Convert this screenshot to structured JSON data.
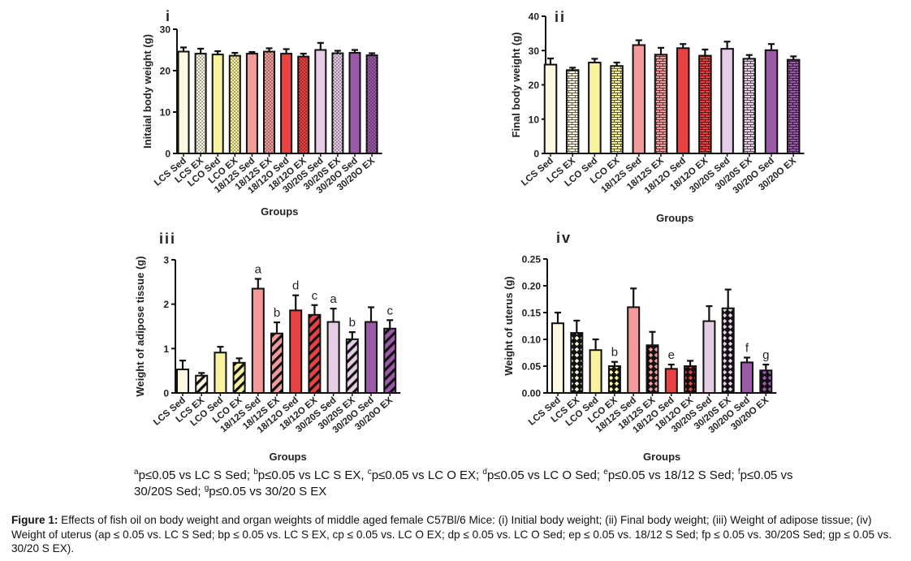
{
  "groups": [
    "LCS Sed",
    "LCS  EX",
    "LCO Sed",
    "LCO  EX",
    "18/12S Sed",
    "18/12S EX",
    "18/12O Sed",
    "18/12O EX",
    "30/20S Sed",
    "30/20S EX",
    "30/20O Sed",
    "30/20O EX"
  ],
  "group_colors": [
    "#fdf9e0",
    "#fdf9e0",
    "#f7f39e",
    "#f7f39e",
    "#f39b9b",
    "#f39b9b",
    "#ea4242",
    "#ea4242",
    "#e6cde6",
    "#e6cde6",
    "#9b5aa8",
    "#9b5aa8"
  ],
  "chart_data": [
    {
      "type": "bar",
      "panel": "i",
      "title": "",
      "xlabel": "Groups",
      "ylabel": "Initaial body weight (g)",
      "ylim": [
        0,
        30
      ],
      "yticks": [
        0,
        10,
        20,
        30
      ],
      "ytick_labels": [
        "0",
        "10",
        "20",
        "30"
      ],
      "pattern": "dots",
      "categories": [
        "LCS Sed",
        "LCS  EX",
        "LCO Sed",
        "LCO  EX",
        "18/12S Sed",
        "18/12S EX",
        "18/12O Sed",
        "18/12O EX",
        "30/20S Sed",
        "30/20S EX",
        "30/20O Sed",
        "30/20O EX"
      ],
      "values": [
        24.6,
        24.1,
        23.9,
        23.6,
        24.1,
        24.6,
        24.1,
        23.4,
        25.0,
        24.2,
        24.3,
        23.7
      ],
      "errors": [
        1.0,
        1.2,
        0.8,
        0.7,
        0.4,
        0.8,
        1.1,
        0.7,
        1.7,
        0.6,
        0.7,
        0.5
      ],
      "annotations": [
        "",
        "",
        "",
        "",
        "",
        "",
        "",
        "",
        "",
        "",
        "",
        ""
      ]
    },
    {
      "type": "bar",
      "panel": "ii",
      "title": "",
      "xlabel": "Groups",
      "ylabel": "Final body weight (g)",
      "ylim": [
        0,
        40
      ],
      "yticks": [
        0,
        10,
        20,
        30,
        40
      ],
      "ytick_labels": [
        "0",
        "10",
        "20",
        "30",
        "40"
      ],
      "pattern": "bricks",
      "categories": [
        "LCS Sed",
        "LCS  EX",
        "LCO Sed",
        "LCO  EX",
        "18/12S Sed",
        "18/12S EX",
        "18/12O Sed",
        "18/12O EX",
        "30/20S Sed",
        "30/20S EX",
        "30/20O Sed",
        "30/20O EX"
      ],
      "values": [
        25.9,
        24.3,
        26.5,
        25.5,
        31.6,
        28.8,
        30.7,
        28.5,
        30.5,
        27.6,
        30.1,
        27.3
      ],
      "errors": [
        1.8,
        0.7,
        1.1,
        1.0,
        1.4,
        2.0,
        1.2,
        1.8,
        2.1,
        1.1,
        1.8,
        1.0
      ],
      "annotations": [
        "",
        "",
        "",
        "",
        "",
        "",
        "",
        "",
        "",
        "",
        "",
        ""
      ]
    },
    {
      "type": "bar",
      "panel": "iii",
      "title": "",
      "xlabel": "Groups",
      "ylabel": "Weight of adipose tissue (g)",
      "ylim": [
        0,
        3
      ],
      "yticks": [
        0,
        1,
        2,
        3
      ],
      "ytick_labels": [
        "0",
        "1",
        "2",
        "3"
      ],
      "pattern": "stripes",
      "categories": [
        "LCS Sed",
        "LCS  EX",
        "LCO Sed",
        "LCO  EX",
        "18/12S Sed",
        "18/12S EX",
        "18/12O Sed",
        "18/12O EX",
        "30/20S Sed",
        "30/20S EX",
        "30/20O Sed",
        "30/20O EX"
      ],
      "values": [
        0.53,
        0.39,
        0.91,
        0.68,
        2.35,
        1.34,
        1.86,
        1.76,
        1.6,
        1.21,
        1.6,
        1.45
      ],
      "errors": [
        0.2,
        0.06,
        0.13,
        0.1,
        0.22,
        0.25,
        0.34,
        0.22,
        0.3,
        0.16,
        0.33,
        0.19
      ],
      "annotations": [
        "",
        "",
        "",
        "",
        "a",
        "b",
        "d",
        "c",
        "a",
        "b",
        "",
        "c"
      ]
    },
    {
      "type": "bar",
      "panel": "iv",
      "title": "",
      "xlabel": "Groups",
      "ylabel": "Weight of uterus (g)",
      "ylim": [
        0,
        0.25
      ],
      "yticks": [
        0,
        0.05,
        0.1,
        0.15,
        0.2,
        0.25
      ],
      "ytick_labels": [
        "0.00",
        "0.05",
        "0.10",
        "0.15",
        "0.20",
        "0.25"
      ],
      "pattern": "diamonds",
      "categories": [
        "LCS Sed",
        "LCS  EX",
        "LCO Sed",
        "LCO  EX",
        "18/12S Sed",
        "18/12S EX",
        "18/12O Sed",
        "18/12O EX",
        "30/20S Sed",
        "30/20S EX",
        "30/20O Sed",
        "30/20O EX"
      ],
      "values": [
        0.13,
        0.112,
        0.08,
        0.05,
        0.16,
        0.089,
        0.045,
        0.05,
        0.134,
        0.158,
        0.057,
        0.042
      ],
      "errors": [
        0.02,
        0.023,
        0.02,
        0.008,
        0.035,
        0.025,
        0.008,
        0.01,
        0.028,
        0.035,
        0.009,
        0.011
      ],
      "annotations": [
        "",
        "",
        "",
        "b",
        "",
        "",
        "e",
        "",
        "",
        "",
        "f",
        "g"
      ]
    }
  ],
  "footnote": {
    "items": [
      {
        "sup": "a",
        "text": "p≤0.05 vs LC S  Sed; "
      },
      {
        "sup": "b",
        "text": "p≤0.05 vs LC S EX, "
      },
      {
        "sup": "c",
        "text": "p≤0.05 vs LC O EX; "
      },
      {
        "sup": "d",
        "text": "p≤0.05 vs LC O  Sed; "
      },
      {
        "sup": "e",
        "text": "p≤0.05 vs 18/12 S  Sed; "
      },
      {
        "sup": "f",
        "text": "p≤0.05 vs 30/20S Sed; "
      },
      {
        "sup": "g",
        "text": "p≤0.05 vs 30/20 S EX"
      }
    ]
  },
  "caption": {
    "label": "Figure 1:",
    "text": " Effects of fish oil on body weight and organ weights of middle aged female C57Bl/6 Mice: (i) Initial body weight; (ii) Final body weight; (iii) Weight of adipose tissue; (iv) Weight of uterus (ap ≤ 0.05 vs. LC S Sed; bp ≤ 0.05 vs. LC S EX, cp ≤ 0.05 vs. LC O EX; dp ≤ 0.05 vs. LC O Sed; ep ≤ 0.05 vs. 18/12 S Sed; fp ≤ 0.05 vs. 30/20S Sed; gp ≤ 0.05 vs. 30/20 S EX)."
  }
}
